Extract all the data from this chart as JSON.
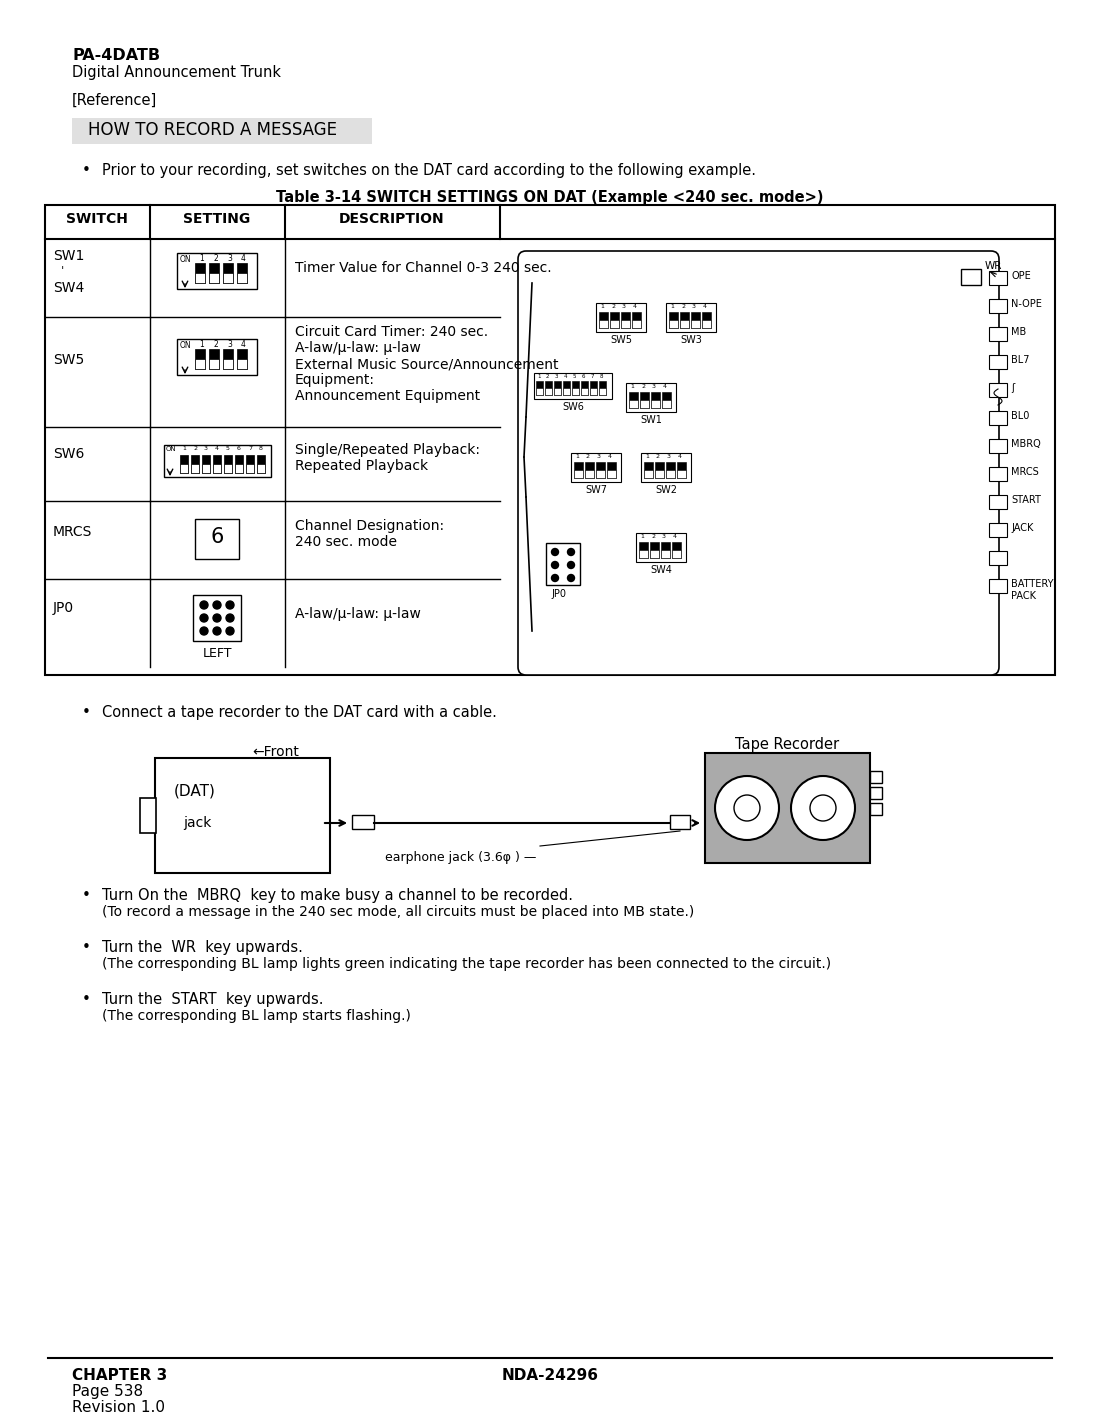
{
  "bg_color": "#ffffff",
  "page_width": 10.8,
  "page_height": 13.97,
  "title_bold": "PA-4DATB",
  "title_sub": "Digital Announcement Trunk",
  "reference": "[Reference]",
  "section_title": "HOW TO RECORD A MESSAGE",
  "bullet1": "Prior to your recording, set switches on the DAT card according to the following example.",
  "table_title": "Table 3-14 SWITCH SETTINGS ON DAT (Example <240 sec. mode>)",
  "bullet2": "Connect a tape recorder to the DAT card with a cable.",
  "bullet3_line1": "Turn On the  MBRQ  key to make busy a channel to be recorded.",
  "bullet3_line2": "(To record a message in the 240 sec mode, all circuits must be placed into MB state.)",
  "bullet4_line1": "Turn the  WR  key upwards.",
  "bullet4_line2": "(The corresponding BL lamp lights green indicating the tape recorder has been connected to the circuit.)",
  "bullet5_line1": "Turn the  START  key upwards.",
  "bullet5_line2": "(The corresponding BL lamp starts flashing.)",
  "footer_left_line1": "CHAPTER 3",
  "footer_left_line2": "Page 538",
  "footer_left_line3": "Revision 1.0",
  "footer_center": "NDA-24296"
}
